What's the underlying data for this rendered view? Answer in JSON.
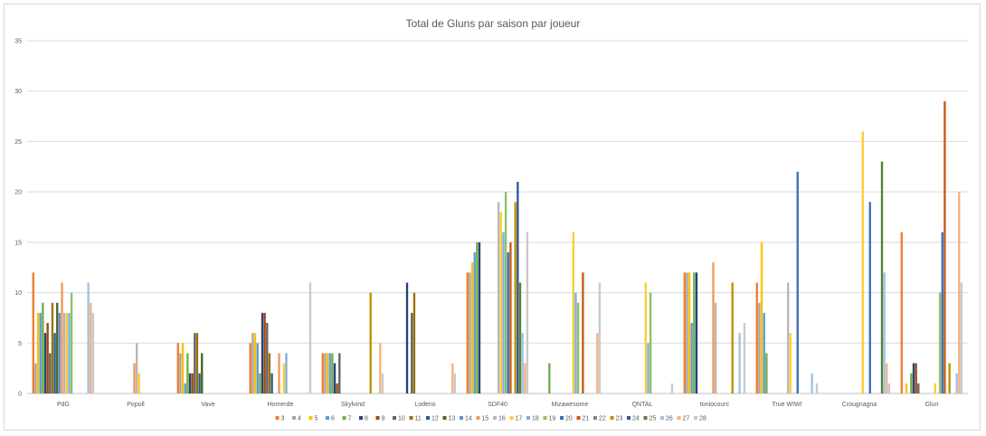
{
  "chart_data": {
    "type": "bar",
    "title": "Total de Gluns par saison par joueur",
    "xlabel": "",
    "ylabel": "",
    "ylim": [
      0,
      35
    ],
    "yticks": [
      0,
      5,
      10,
      15,
      20,
      25,
      30,
      35
    ],
    "grid": true,
    "legend_position": "bottom",
    "categories": [
      "PdG",
      "Popoll",
      "Vave",
      "Homerde",
      "Skylvind",
      "Lodeno",
      "SDF40",
      "Mizawesome",
      "QNTAL",
      "toniocourc",
      "True WIWI",
      "Crougnagna",
      "Glun"
    ],
    "series": [
      {
        "name": "3",
        "color": "#ED7D31",
        "values": [
          12,
          0,
          5,
          5,
          4,
          0,
          12,
          0,
          0,
          12,
          11,
          0,
          16
        ]
      },
      {
        "name": "4",
        "color": "#A5A5A5",
        "values": [
          3,
          0,
          4,
          6,
          4,
          0,
          12,
          0,
          0,
          12,
          9,
          0,
          0
        ]
      },
      {
        "name": "5",
        "color": "#FFC000",
        "values": [
          8,
          0,
          5,
          6,
          4,
          0,
          13,
          0,
          0,
          12,
          15,
          0,
          1
        ]
      },
      {
        "name": "6",
        "color": "#5B9BD5",
        "values": [
          8,
          0,
          1,
          5,
          4,
          0,
          14,
          0,
          0,
          7,
          8,
          0,
          0
        ]
      },
      {
        "name": "7",
        "color": "#70AD47",
        "values": [
          9,
          0,
          4,
          2,
          4,
          0,
          15,
          3,
          0,
          12,
          4,
          0,
          2
        ]
      },
      {
        "name": "8",
        "color": "#264478",
        "values": [
          6,
          0,
          2,
          8,
          3,
          11,
          15,
          0,
          0,
          12,
          0,
          0,
          3
        ]
      },
      {
        "name": "9",
        "color": "#9E480E",
        "values": [
          7,
          0,
          2,
          8,
          1,
          0,
          0,
          0,
          0,
          0,
          0,
          0,
          3
        ]
      },
      {
        "name": "10",
        "color": "#636363",
        "values": [
          4,
          0,
          6,
          7,
          4,
          8,
          0,
          0,
          0,
          0,
          0,
          0,
          1
        ]
      },
      {
        "name": "11",
        "color": "#997300",
        "values": [
          9,
          0,
          6,
          4,
          0,
          10,
          0,
          0,
          0,
          0,
          0,
          0,
          0
        ]
      },
      {
        "name": "12",
        "color": "#255E91",
        "values": [
          6,
          0,
          2,
          2,
          0,
          0,
          0,
          0,
          0,
          0,
          0,
          0,
          0
        ]
      },
      {
        "name": "13",
        "color": "#43682B",
        "values": [
          9,
          0,
          4,
          0,
          0,
          0,
          0,
          0,
          0,
          0,
          0,
          0,
          0
        ]
      },
      {
        "name": "14",
        "color": "#698ED0",
        "values": [
          8,
          0,
          0,
          0,
          0,
          0,
          0,
          0,
          0,
          0,
          0,
          0,
          0
        ]
      },
      {
        "name": "15",
        "color": "#F1975A",
        "values": [
          11,
          3,
          0,
          4,
          0,
          0,
          0,
          0,
          0,
          13,
          0,
          0,
          0
        ]
      },
      {
        "name": "16",
        "color": "#B7B7B7",
        "values": [
          8,
          5,
          0,
          0,
          0,
          0,
          19,
          0,
          0,
          9,
          11,
          0,
          0
        ]
      },
      {
        "name": "17",
        "color": "#FFCD33",
        "values": [
          8,
          2,
          0,
          3,
          0,
          0,
          18,
          16,
          11,
          0,
          6,
          26,
          1
        ]
      },
      {
        "name": "18",
        "color": "#7CAFDD",
        "values": [
          8,
          0,
          0,
          4,
          0,
          0,
          16,
          10,
          5,
          0,
          0,
          0,
          0
        ]
      },
      {
        "name": "19",
        "color": "#8CC168",
        "values": [
          10,
          0,
          0,
          0,
          0,
          0,
          20,
          9,
          10,
          0,
          0,
          0,
          10
        ]
      },
      {
        "name": "20",
        "color": "#3C6FBA",
        "values": [
          0,
          0,
          0,
          0,
          0,
          0,
          14,
          0,
          0,
          0,
          22,
          19,
          16
        ]
      },
      {
        "name": "21",
        "color": "#C55A11",
        "values": [
          0,
          0,
          0,
          0,
          0,
          0,
          15,
          12,
          0,
          0,
          0,
          0,
          29
        ]
      },
      {
        "name": "22",
        "color": "#848484",
        "values": [
          0,
          0,
          0,
          0,
          0,
          0,
          0,
          0,
          0,
          0,
          0,
          0,
          0
        ]
      },
      {
        "name": "23",
        "color": "#BF9000",
        "values": [
          0,
          0,
          0,
          0,
          10,
          0,
          19,
          0,
          0,
          11,
          0,
          0,
          3
        ]
      },
      {
        "name": "24",
        "color": "#2F5597",
        "values": [
          0,
          0,
          0,
          0,
          0,
          0,
          21,
          0,
          0,
          0,
          0,
          0,
          0
        ]
      },
      {
        "name": "25",
        "color": "#548235",
        "values": [
          0,
          0,
          0,
          0,
          0,
          0,
          11,
          0,
          0,
          0,
          0,
          23,
          0
        ]
      },
      {
        "name": "26",
        "color": "#9DC3E6",
        "values": [
          11,
          0,
          0,
          0,
          0,
          0,
          6,
          0,
          0,
          6,
          2,
          12,
          2
        ]
      },
      {
        "name": "27",
        "color": "#F4B183",
        "values": [
          9,
          0,
          0,
          0,
          5,
          3,
          3,
          6,
          0,
          0,
          0,
          3,
          20
        ]
      },
      {
        "name": "28",
        "color": "#C9C9C9",
        "values": [
          8,
          0,
          0,
          11,
          2,
          2,
          16,
          11,
          1,
          7,
          1,
          1,
          11
        ]
      }
    ]
  }
}
